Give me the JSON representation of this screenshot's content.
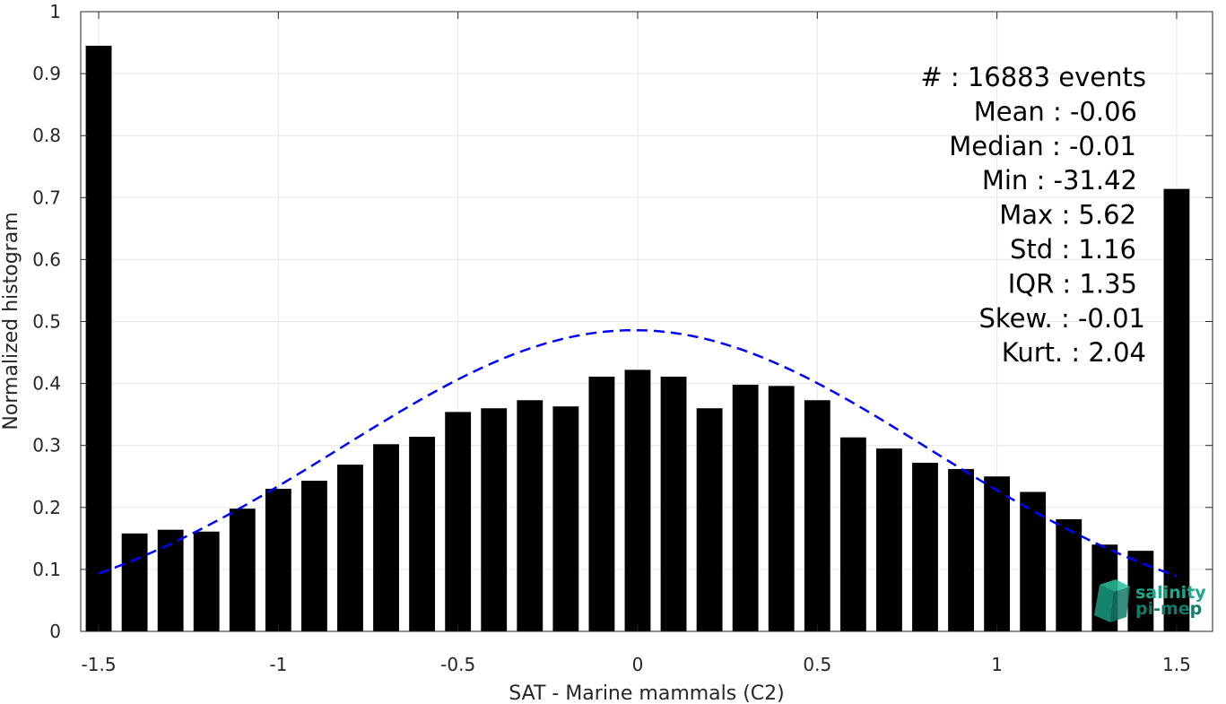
{
  "chart_data": {
    "type": "bar",
    "xlabel": "SAT - Marine mammals (C2)",
    "ylabel": "Normalized histogram",
    "xlim": [
      -1.55,
      1.6
    ],
    "ylim": [
      0,
      1
    ],
    "xticks": [
      -1.5,
      -1,
      -0.5,
      0,
      0.5,
      1,
      1.5
    ],
    "xtick_labels": [
      "-1.5",
      "-1",
      "-0.5",
      "0",
      "0.5",
      "1",
      "1.5"
    ],
    "yticks": [
      0,
      0.1,
      0.2,
      0.3,
      0.4,
      0.5,
      0.6,
      0.7,
      0.8,
      0.9,
      1
    ],
    "ytick_labels": [
      "0",
      "0.1",
      "0.2",
      "0.3",
      "0.4",
      "0.5",
      "0.6",
      "0.7",
      "0.8",
      "0.9",
      "1"
    ],
    "grid": true,
    "bar_color": "#000000",
    "x": [
      -1.5,
      -1.4,
      -1.3,
      -1.2,
      -1.1,
      -1.0,
      -0.9,
      -0.8,
      -0.7,
      -0.6,
      -0.5,
      -0.4,
      -0.3,
      -0.2,
      -0.1,
      0.0,
      0.1,
      0.2,
      0.3,
      0.4,
      0.5,
      0.6,
      0.7,
      0.8,
      0.9,
      1.0,
      1.1,
      1.2,
      1.3,
      1.4,
      1.5
    ],
    "values": [
      0.945,
      0.158,
      0.164,
      0.161,
      0.198,
      0.23,
      0.243,
      0.269,
      0.302,
      0.314,
      0.354,
      0.36,
      0.373,
      0.363,
      0.411,
      0.422,
      0.411,
      0.36,
      0.398,
      0.396,
      0.373,
      0.313,
      0.295,
      0.272,
      0.262,
      0.25,
      0.225,
      0.181,
      0.14,
      0.13,
      0.714
    ],
    "fit_curve": {
      "style": "dashed",
      "color": "#0000ff",
      "mean": -0.01,
      "std": 0.82,
      "peak": 0.486,
      "x_range": [
        -1.5,
        1.5
      ]
    },
    "stats": [
      "#  : 16883 events",
      "Mean : -0.06",
      "Median : -0.01",
      "Min : -31.42",
      "Max : 5.62",
      "Std : 1.16",
      "IQR : 1.35",
      "Skew. : -0.01",
      "Kurt. : 2.04"
    ]
  },
  "logo": {
    "line1": "salinity",
    "line2": "pi-mep",
    "color1": "#1aa88a",
    "color2": "#137a6a"
  }
}
